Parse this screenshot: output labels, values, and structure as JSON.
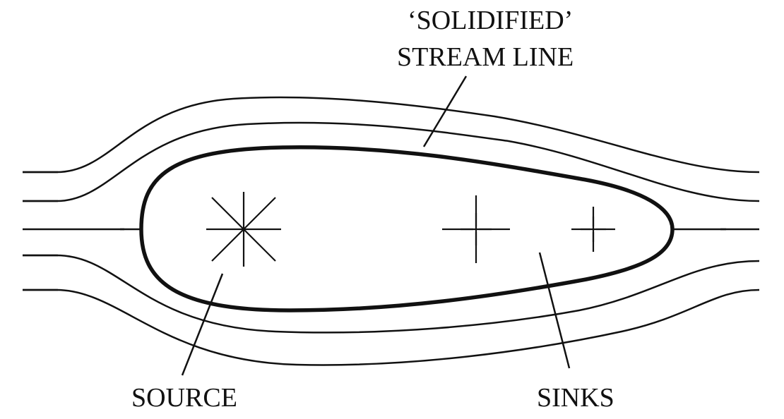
{
  "labels": {
    "solidified_line1": "‘SOLIDIFIED’",
    "solidified_line2": "STREAM LINE",
    "source": "SOURCE",
    "sinks": "SINKS"
  },
  "colors": {
    "ink": "#111111",
    "background": "#ffffff"
  },
  "elements": {
    "streamline_count": 5,
    "body_outline": "solidified-streamline",
    "source_arrows": 8,
    "sink_count": 2
  }
}
